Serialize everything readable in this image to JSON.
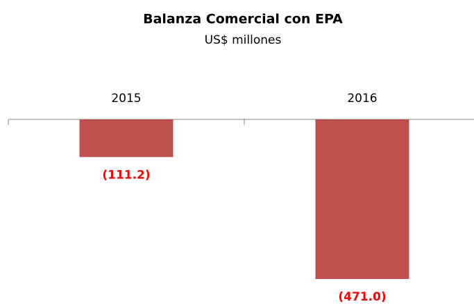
{
  "chart_data": {
    "type": "bar",
    "title": "Balanza Comercial con EPA",
    "subtitle": "US$ millones",
    "categories": [
      "2015",
      "2016"
    ],
    "values": [
      -111.2,
      -471.0
    ],
    "value_labels": [
      "(111.2)",
      "(471.0)"
    ],
    "color": "#c0504d",
    "label_color": "#ff0000"
  }
}
